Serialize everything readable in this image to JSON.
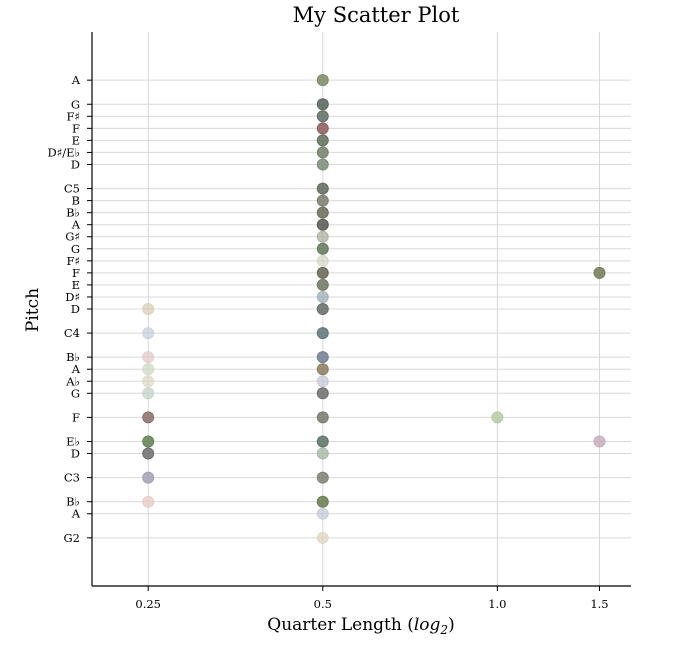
{
  "chart_data": {
    "type": "scatter",
    "title": "My Scatter Plot",
    "xlabel": "Quarter Length (log",
    "xlabel_sub": "2",
    "xlabel_close": ")",
    "ylabel": "Pitch",
    "x_scale": "log2",
    "xlim": [
      0.2,
      1.7
    ],
    "x_ticks": [
      {
        "value": 0.25,
        "label": "0.25"
      },
      {
        "value": 0.5,
        "label": "0.5"
      },
      {
        "value": 1.0,
        "label": "1.0"
      },
      {
        "value": 1.5,
        "label": "1.5"
      }
    ],
    "ylim": [
      39,
      85
    ],
    "y_ticks": [
      {
        "value": 43,
        "label": "G2"
      },
      {
        "value": 45,
        "label": "A"
      },
      {
        "value": 46,
        "label": "B♭"
      },
      {
        "value": 48,
        "label": "C3"
      },
      {
        "value": 50,
        "label": "D"
      },
      {
        "value": 51,
        "label": "E♭"
      },
      {
        "value": 53,
        "label": "F"
      },
      {
        "value": 55,
        "label": "G"
      },
      {
        "value": 56,
        "label": "A♭"
      },
      {
        "value": 57,
        "label": "A"
      },
      {
        "value": 58,
        "label": "B♭"
      },
      {
        "value": 60,
        "label": "C4"
      },
      {
        "value": 62,
        "label": "D"
      },
      {
        "value": 63,
        "label": "D♯"
      },
      {
        "value": 64,
        "label": "E"
      },
      {
        "value": 65,
        "label": "F"
      },
      {
        "value": 66,
        "label": "F♯"
      },
      {
        "value": 67,
        "label": "G"
      },
      {
        "value": 68,
        "label": "G♯"
      },
      {
        "value": 69,
        "label": "A"
      },
      {
        "value": 70,
        "label": "B♭"
      },
      {
        "value": 71,
        "label": "B"
      },
      {
        "value": 72,
        "label": "C5"
      },
      {
        "value": 74,
        "label": "D"
      },
      {
        "value": 75,
        "label": "D♯/E♭"
      },
      {
        "value": 76,
        "label": "E"
      },
      {
        "value": 77,
        "label": "F"
      },
      {
        "value": 78,
        "label": "F♯"
      },
      {
        "value": 79,
        "label": "G"
      },
      {
        "value": 81,
        "label": "A"
      }
    ],
    "grid": true,
    "points": [
      {
        "x": 0.5,
        "y": 81,
        "color": "#7c8760",
        "alpha": 0.85
      },
      {
        "x": 0.5,
        "y": 79,
        "color": "#56625a",
        "alpha": 0.85
      },
      {
        "x": 0.5,
        "y": 78,
        "color": "#5c6e62",
        "alpha": 0.85
      },
      {
        "x": 0.5,
        "y": 77,
        "color": "#8a5a5a",
        "alpha": 0.85
      },
      {
        "x": 0.5,
        "y": 76,
        "color": "#5e6e58",
        "alpha": 0.85
      },
      {
        "x": 0.5,
        "y": 75,
        "color": "#6f8068",
        "alpha": 0.85
      },
      {
        "x": 0.5,
        "y": 74,
        "color": "#7a8c78",
        "alpha": 0.85
      },
      {
        "x": 0.5,
        "y": 72,
        "color": "#5f675d",
        "alpha": 0.85
      },
      {
        "x": 0.5,
        "y": 71,
        "color": "#7b7d6c",
        "alpha": 0.85
      },
      {
        "x": 0.5,
        "y": 70,
        "color": "#6a6a55",
        "alpha": 0.85
      },
      {
        "x": 0.5,
        "y": 69,
        "color": "#55584f",
        "alpha": 0.85
      },
      {
        "x": 0.5,
        "y": 68,
        "color": "#a7ad9a",
        "alpha": 0.7
      },
      {
        "x": 0.5,
        "y": 67,
        "color": "#5f7858",
        "alpha": 0.85
      },
      {
        "x": 0.5,
        "y": 66,
        "color": "#d3d6c2",
        "alpha": 0.7
      },
      {
        "x": 0.5,
        "y": 65,
        "color": "#666452",
        "alpha": 0.85
      },
      {
        "x": 0.5,
        "y": 64,
        "color": "#6c7560",
        "alpha": 0.85
      },
      {
        "x": 0.5,
        "y": 63,
        "color": "#97aab0",
        "alpha": 0.7
      },
      {
        "x": 0.5,
        "y": 62,
        "color": "#646b66",
        "alpha": 0.85
      },
      {
        "x": 0.5,
        "y": 60,
        "color": "#5c7474",
        "alpha": 0.85
      },
      {
        "x": 0.5,
        "y": 58,
        "color": "#727d90",
        "alpha": 0.85
      },
      {
        "x": 0.5,
        "y": 57,
        "color": "#8a7c5c",
        "alpha": 0.85
      },
      {
        "x": 0.5,
        "y": 56,
        "color": "#c2c4d6",
        "alpha": 0.7
      },
      {
        "x": 0.5,
        "y": 55,
        "color": "#6b6b68",
        "alpha": 0.85
      },
      {
        "x": 0.5,
        "y": 53,
        "color": "#787870",
        "alpha": 0.85
      },
      {
        "x": 0.5,
        "y": 51,
        "color": "#597264",
        "alpha": 0.85
      },
      {
        "x": 0.5,
        "y": 50,
        "color": "#9ab09a",
        "alpha": 0.7
      },
      {
        "x": 0.5,
        "y": 48,
        "color": "#7d7f75",
        "alpha": 0.85
      },
      {
        "x": 0.5,
        "y": 46,
        "color": "#6a7a4e",
        "alpha": 0.85
      },
      {
        "x": 0.5,
        "y": 45,
        "color": "#c3c6d6",
        "alpha": 0.7
      },
      {
        "x": 0.5,
        "y": 43,
        "color": "#ddd3ba",
        "alpha": 0.7
      },
      {
        "x": 0.25,
        "y": 62,
        "color": "#d9cdb4",
        "alpha": 0.7
      },
      {
        "x": 0.25,
        "y": 60,
        "color": "#c4cfdb",
        "alpha": 0.7
      },
      {
        "x": 0.25,
        "y": 58,
        "color": "#e2c8c4",
        "alpha": 0.7
      },
      {
        "x": 0.25,
        "y": 57,
        "color": "#cdd8c2",
        "alpha": 0.7
      },
      {
        "x": 0.25,
        "y": 56,
        "color": "#ddd6c4",
        "alpha": 0.7
      },
      {
        "x": 0.25,
        "y": 55,
        "color": "#c3d2c6",
        "alpha": 0.7
      },
      {
        "x": 0.25,
        "y": 53,
        "color": "#8a6e6a",
        "alpha": 0.85
      },
      {
        "x": 0.25,
        "y": 51,
        "color": "#5f8052",
        "alpha": 0.85
      },
      {
        "x": 0.25,
        "y": 50,
        "color": "#6b6b6b",
        "alpha": 0.85
      },
      {
        "x": 0.25,
        "y": 48,
        "color": "#9e9cb0",
        "alpha": 0.8
      },
      {
        "x": 0.25,
        "y": 46,
        "color": "#e6c6c0",
        "alpha": 0.7
      },
      {
        "x": 1.0,
        "y": 53,
        "color": "#b4c8a0",
        "alpha": 0.8
      },
      {
        "x": 1.5,
        "y": 65,
        "color": "#717a56",
        "alpha": 0.85
      },
      {
        "x": 1.5,
        "y": 51,
        "color": "#c4aab8",
        "alpha": 0.8
      }
    ]
  }
}
